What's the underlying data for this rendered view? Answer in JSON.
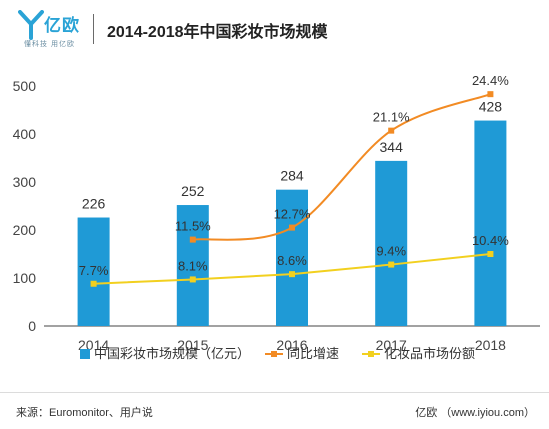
{
  "header": {
    "logo_text": "亿欧",
    "logo_tagline": "懂科技 用亿欧",
    "title": "2014-2018年中国彩妆市场规模"
  },
  "chart_data": {
    "type": "bar",
    "categories": [
      "2014",
      "2015",
      "2016",
      "2017",
      "2018"
    ],
    "ylim": [
      0,
      500
    ],
    "yticks": [
      0,
      100,
      200,
      300,
      400,
      500
    ],
    "grid": false,
    "legend_position": "bottom",
    "series": [
      {
        "name": "中国彩妆市场规模（亿元）",
        "kind": "bar",
        "color": "#1f9ad6",
        "values": [
          226,
          252,
          284,
          344,
          428
        ],
        "labels": [
          "226",
          "252",
          "284",
          "344",
          "428"
        ]
      },
      {
        "name": "同比增速",
        "kind": "line",
        "color": "#f28b24",
        "values": [
          null,
          11.5,
          12.7,
          21.1,
          24.4
        ],
        "labels": [
          null,
          "11.5%",
          "12.7%",
          "21.1%",
          "24.4%"
        ],
        "plot_positions": [
          null,
          180,
          205,
          407,
          483
        ]
      },
      {
        "name": "化妆品市场份额",
        "kind": "line",
        "color": "#f2d01f",
        "values": [
          7.7,
          8.1,
          8.6,
          9.4,
          10.4
        ],
        "labels": [
          "7.7%",
          "8.1%",
          "8.6%",
          "9.4%",
          "10.4%"
        ],
        "plot_positions": [
          88,
          97,
          108,
          128,
          150
        ]
      }
    ]
  },
  "footer": {
    "source": "来源：Euromonitor、用户说",
    "credit": "亿欧 （www.iyiou.com）"
  },
  "colors": {
    "brand": "#2aa3d6",
    "axis": "#444444"
  }
}
